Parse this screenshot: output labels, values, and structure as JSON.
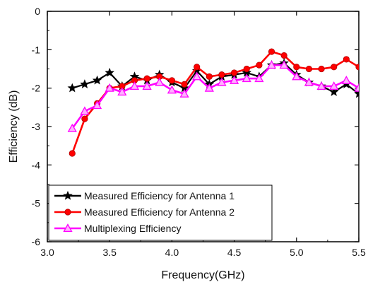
{
  "chart_data": {
    "type": "line",
    "title": "",
    "xlabel": "Frequency(GHz)",
    "ylabel": "Efficiency (dB)",
    "xlim": [
      3.0,
      5.5
    ],
    "ylim": [
      -6,
      0
    ],
    "xticks": [
      "3.0",
      "3.5",
      "4.0",
      "4.5",
      "5.0",
      "5.5"
    ],
    "yticks": [
      "0",
      "-1",
      "-2",
      "-3",
      "-4",
      "-5",
      "-6"
    ],
    "grid": false,
    "legend_position": "bottom-left",
    "series": [
      {
        "name": "Measured Efficiency for Antenna 1",
        "color": "#000000",
        "marker": "star",
        "x": [
          3.2,
          3.3,
          3.4,
          3.5,
          3.6,
          3.7,
          3.8,
          3.9,
          4.0,
          4.1,
          4.2,
          4.3,
          4.4,
          4.5,
          4.6,
          4.7,
          4.8,
          4.9,
          5.0,
          5.1,
          5.2,
          5.3,
          5.4,
          5.5
        ],
        "y": [
          -2.0,
          -1.9,
          -1.8,
          -1.6,
          -1.95,
          -1.7,
          -1.8,
          -1.65,
          -1.85,
          -2.0,
          -1.55,
          -1.9,
          -1.7,
          -1.65,
          -1.6,
          -1.7,
          -1.4,
          -1.35,
          -1.65,
          -1.85,
          -1.95,
          -2.1,
          -1.9,
          -2.15
        ]
      },
      {
        "name": "Measured Efficiency for Antenna 2",
        "color": "#ff0000",
        "marker": "circle",
        "x": [
          3.2,
          3.3,
          3.4,
          3.5,
          3.6,
          3.7,
          3.8,
          3.9,
          4.0,
          4.1,
          4.2,
          4.3,
          4.4,
          4.5,
          4.6,
          4.7,
          4.8,
          4.9,
          5.0,
          5.1,
          5.2,
          5.3,
          5.4,
          5.5
        ],
        "y": [
          -3.7,
          -2.8,
          -2.4,
          -2.0,
          -1.95,
          -1.8,
          -1.75,
          -1.7,
          -1.8,
          -1.9,
          -1.45,
          -1.7,
          -1.65,
          -1.6,
          -1.5,
          -1.4,
          -1.05,
          -1.15,
          -1.45,
          -1.5,
          -1.5,
          -1.45,
          -1.25,
          -1.45
        ]
      },
      {
        "name": "Multiplexing Efficiency",
        "color": "#ff00ff",
        "marker": "triangle",
        "x": [
          3.2,
          3.3,
          3.4,
          3.5,
          3.6,
          3.7,
          3.8,
          3.9,
          4.0,
          4.1,
          4.2,
          4.3,
          4.4,
          4.5,
          4.6,
          4.7,
          4.8,
          4.9,
          5.0,
          5.1,
          5.2,
          5.3,
          5.4,
          5.5
        ],
        "y": [
          -3.05,
          -2.6,
          -2.45,
          -2.0,
          -2.1,
          -1.95,
          -1.95,
          -1.85,
          -2.05,
          -2.15,
          -1.7,
          -2.0,
          -1.85,
          -1.8,
          -1.75,
          -1.75,
          -1.4,
          -1.4,
          -1.7,
          -1.85,
          -1.95,
          -1.95,
          -1.8,
          -2.0
        ]
      }
    ]
  }
}
